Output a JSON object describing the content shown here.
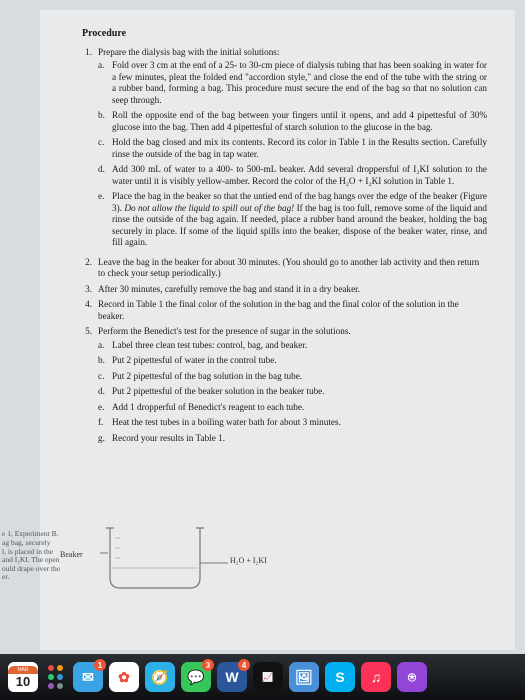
{
  "heading": "Procedure",
  "items": [
    {
      "num": "1.",
      "text": "Prepare the dialysis bag with the initial solutions:",
      "subs": [
        {
          "l": "a.",
          "t": "Fold over 3 cm at the end of a 25- to 30-cm piece of dialysis tubing that has been soaking in water for a few minutes, pleat the folded end \"accordion style,\" and close the end of the tube with the string or a rubber band, forming a bag. This procedure must secure the end of the bag so that no solution can seep through."
        },
        {
          "l": "b.",
          "t": "Roll the opposite end of the bag between your fingers until it opens, and add 4 pipettesful of 30% glucose into the bag. Then add 4 pipettesful of starch solution to the glucose in the bag."
        },
        {
          "l": "c.",
          "t": "Hold the bag closed and mix its contents. Record its color in Table 1 in the Results section. Carefully rinse the outside of the bag in tap water."
        },
        {
          "l": "d.",
          "t": "Add 300 mL of water to a 400- to 500-mL beaker. Add several droppersful of I₂KI solution to the water until it is visibly yellow-amber. Record the color of the H₂O + I₂KI solution in Table 1."
        },
        {
          "l": "e.",
          "t": "Place the bag in the beaker so that the untied end of the bag hangs over the edge of the beaker (Figure 3). ",
          "italic": "Do not allow the liquid to spill out of the bag!",
          "t2": " If the bag is too full, remove some of the liquid and rinse the outside of the bag again. If needed, place a rubber band around the beaker, holding the bag securely in place. If some of the liquid spills into the beaker, dispose of the beaker water, rinse, and fill again."
        }
      ]
    },
    {
      "num": "2.",
      "text": "Leave the bag in the beaker for about 30 minutes. (You should go to another lab activity and then return to check your setup periodically.)"
    },
    {
      "num": "3.",
      "text": "After 30 minutes, carefully remove the bag and stand it in a dry beaker."
    },
    {
      "num": "4.",
      "text": "Record in Table 1 the final color of the solution in the bag and the final color of the solution in the beaker."
    },
    {
      "num": "5.",
      "text": "Perform the Benedict's test for the presence of sugar in the solutions.",
      "subs": [
        {
          "l": "a.",
          "t": "Label three clean test tubes: control, bag, and beaker."
        },
        {
          "l": "b.",
          "t": "Put 2 pipettesful of water in the control tube."
        },
        {
          "l": "c.",
          "t": "Put 2 pipettesful of the bag solution in the bag tube."
        },
        {
          "l": "d.",
          "t": "Put 2 pipettesful of the beaker solution in the beaker tube."
        },
        {
          "l": "e.",
          "t": "Add 1 dropperful of Benedict's reagent to each tube."
        },
        {
          "l": "f.",
          "t": "Heat the test tubes in a boiling water bath for about 3 minutes."
        },
        {
          "l": "g.",
          "t": "Record your results in Table 1."
        }
      ]
    }
  ],
  "caption": {
    "l1": "e 1, Experiment B.",
    "l2": "ag bag, securely",
    "l3": "l, is placed in the",
    "l4": "and I₂KI. The open",
    "l5": "ould drape over the",
    "l6": "er."
  },
  "beaker_label": "Beaker",
  "solution_label": "H₂O + I₂KI",
  "cal_month": "MAR",
  "cal_day": "10",
  "dock_colors": {
    "dots": [
      "#e74c3c",
      "#f39c12",
      "#2ecc71",
      "#3498db",
      "#9b59b6",
      "#7f8c8d"
    ],
    "mail": "#3aa3e3",
    "photos": "#ffffff",
    "safari": "#2bb0e8",
    "messages": "#35c759",
    "word": "#2b579a",
    "stocks": "#111",
    "preview": "#4a90d9",
    "skype": "#00aff0",
    "itunes": "#fc3158",
    "podcasts": "#9146d8"
  },
  "badges": {
    "mail": "1",
    "messages": "3",
    "word": "4"
  }
}
